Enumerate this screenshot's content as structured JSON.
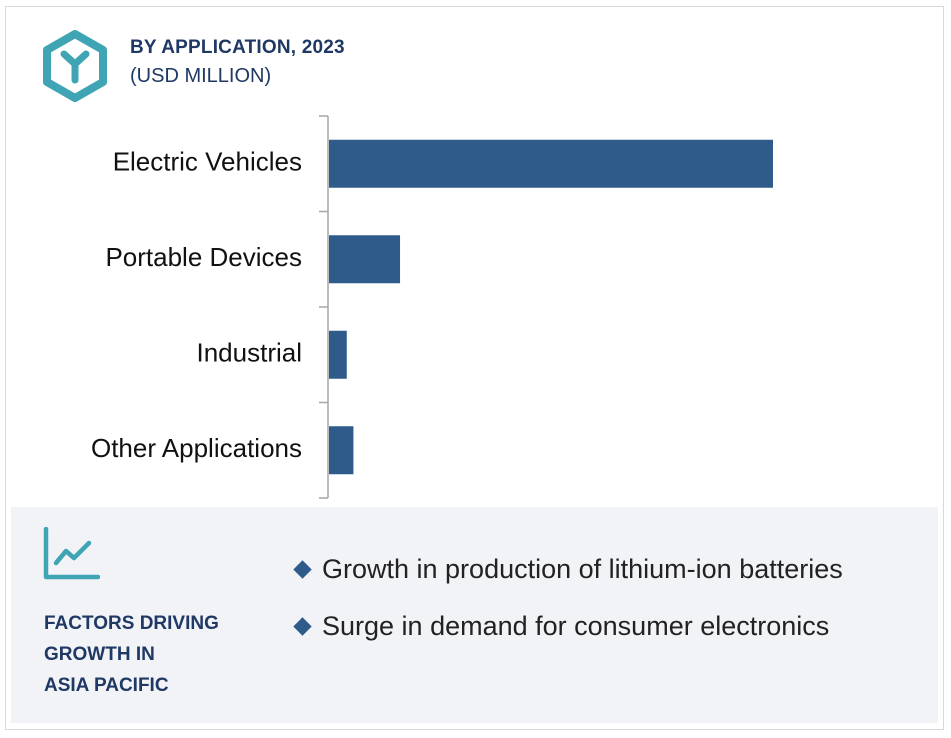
{
  "header": {
    "title": "BY APPLICATION, 2023",
    "subtitle": "(USD MILLION)"
  },
  "colors": {
    "bar": "#2e5b8a",
    "heading": "#1f3864",
    "logo": "#3fa5b5",
    "panel": "#f2f3f7"
  },
  "icons": {
    "logo": "hexagon-y-logo-icon",
    "factors": "line-chart-trend-icon",
    "bullet": "diamond-bullet-icon"
  },
  "chart_data": {
    "type": "bar",
    "orientation": "horizontal",
    "title": "BY APPLICATION, 2023",
    "subtitle": "(USD MILLION)",
    "categories": [
      "Electric Vehicles",
      "Portable Devices",
      "Industrial",
      "Other Applications"
    ],
    "values": [
      100,
      16,
      4,
      5.5
    ],
    "xlim": [
      0,
      100
    ],
    "value_labels_shown": false,
    "grid": false,
    "legend": "none"
  },
  "factors": {
    "title_lines": [
      "FACTORS DRIVING",
      "GROWTH IN",
      "ASIA PACIFIC"
    ],
    "items": [
      "Growth in production of lithium-ion batteries",
      "Surge in demand for consumer electronics"
    ]
  }
}
